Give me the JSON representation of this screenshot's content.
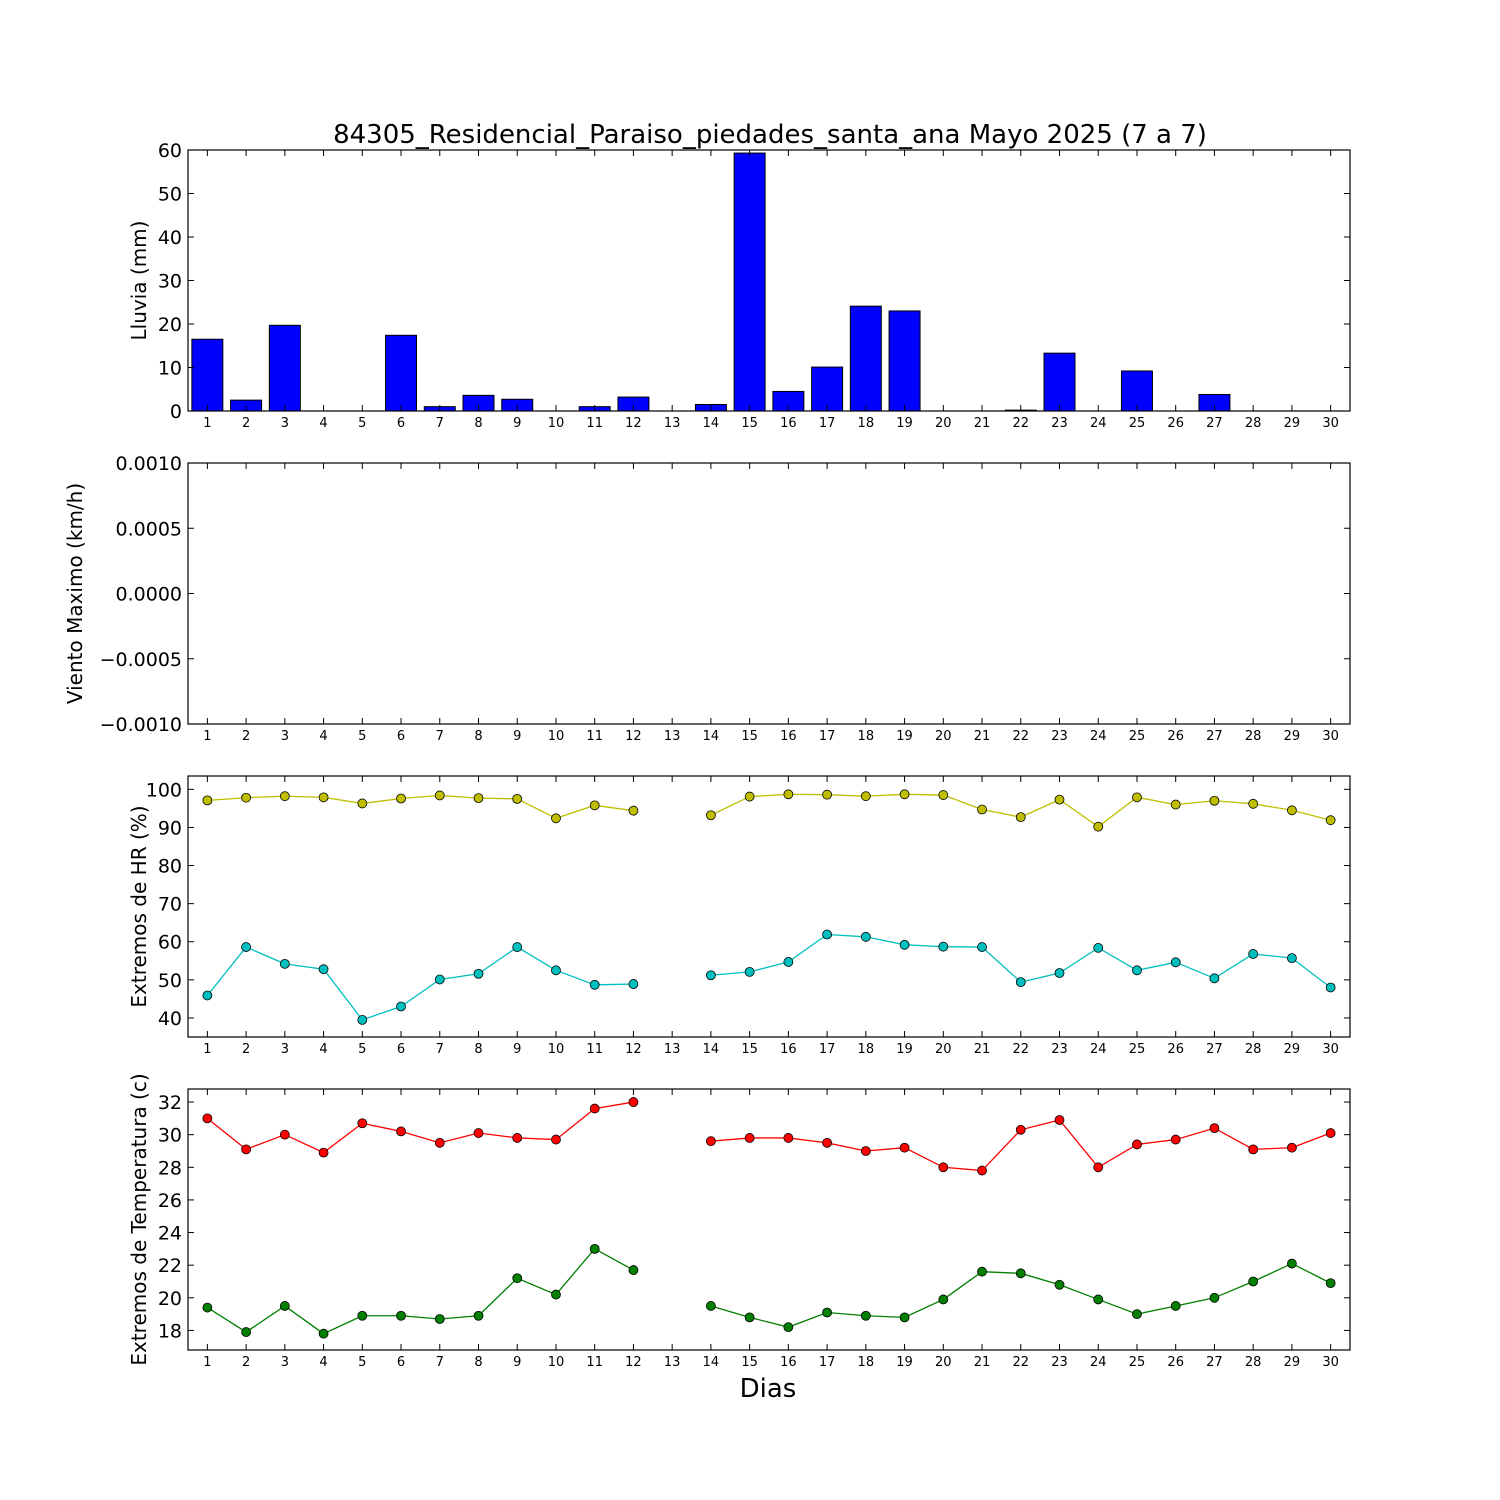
{
  "figure": {
    "title": "84305_Residencial_Paraiso_piedades_santa_ana Mayo 2025  (7 a 7)",
    "xlabel": "Dias"
  },
  "chart_data": [
    {
      "type": "bar",
      "ylabel": "Lluvia (mm)",
      "ylim": [
        0,
        60
      ],
      "yticks": [
        0,
        10,
        20,
        30,
        40,
        50,
        60
      ],
      "ytick_labels": [
        "0",
        "10",
        "20",
        "30",
        "40",
        "50",
        "60"
      ],
      "x": [
        1,
        2,
        3,
        4,
        5,
        6,
        7,
        8,
        9,
        10,
        11,
        12,
        13,
        14,
        15,
        16,
        17,
        18,
        19,
        20,
        21,
        22,
        23,
        24,
        25,
        26,
        27,
        28,
        29,
        30
      ],
      "series": [
        {
          "color": "#0000ff",
          "values": [
            16.5,
            2.5,
            19.7,
            0,
            0,
            17.4,
            1.0,
            3.6,
            2.7,
            0,
            1.0,
            3.2,
            null,
            1.5,
            59.3,
            4.5,
            10.1,
            24.1,
            23.0,
            0,
            0,
            0.2,
            13.3,
            0,
            9.2,
            null,
            3.8,
            0,
            0,
            0
          ]
        }
      ]
    },
    {
      "type": "line",
      "ylabel": "Viento Maximo (km/h)",
      "ylim": [
        -0.001,
        0.001
      ],
      "yticks": [
        -0.001,
        -0.0005,
        0,
        0.0005,
        0.001
      ],
      "ytick_labels": [
        "−0.0010",
        "−0.0005",
        "0.0000",
        "0.0005",
        "0.0010"
      ],
      "x": [
        1,
        2,
        3,
        4,
        5,
        6,
        7,
        8,
        9,
        10,
        11,
        12,
        13,
        14,
        15,
        16,
        17,
        18,
        19,
        20,
        21,
        22,
        23,
        24,
        25,
        26,
        27,
        28,
        29,
        30
      ],
      "series": []
    },
    {
      "type": "line",
      "ylabel": "Extremos de HR (%)",
      "ylim": [
        35,
        103.5
      ],
      "yticks": [
        40,
        50,
        60,
        70,
        80,
        90,
        100
      ],
      "ytick_labels": [
        "40",
        "50",
        "60",
        "70",
        "80",
        "90",
        "100"
      ],
      "x": [
        1,
        2,
        3,
        4,
        5,
        6,
        7,
        8,
        9,
        10,
        11,
        12,
        13,
        14,
        15,
        16,
        17,
        18,
        19,
        20,
        21,
        22,
        23,
        24,
        25,
        26,
        27,
        28,
        29,
        30
      ],
      "series": [
        {
          "color": "#bfbf00",
          "values": [
            97.1,
            97.8,
            98.2,
            97.9,
            96.3,
            97.6,
            98.4,
            97.7,
            97.5,
            92.4,
            95.8,
            94.4,
            null,
            93.2,
            98.1,
            98.7,
            98.6,
            98.2,
            98.7,
            98.5,
            94.7,
            92.7,
            97.3,
            90.2,
            97.9,
            96.0,
            97.0,
            96.2,
            94.5,
            91.9
          ]
        },
        {
          "color": "#00bfbf",
          "values": [
            45.9,
            58.6,
            54.2,
            52.8,
            39.5,
            43.0,
            50.1,
            51.6,
            58.6,
            52.5,
            48.7,
            48.9,
            null,
            51.2,
            52.1,
            54.7,
            61.9,
            61.3,
            59.2,
            58.7,
            58.6,
            49.4,
            51.8,
            58.4,
            52.5,
            54.6,
            50.4,
            56.8,
            55.7,
            48.0
          ]
        }
      ]
    },
    {
      "type": "line",
      "ylabel": "Extremos de Temperatura (c)",
      "ylim": [
        16.8,
        32.8
      ],
      "yticks": [
        18,
        20,
        22,
        24,
        26,
        28,
        30,
        32
      ],
      "ytick_labels": [
        "18",
        "20",
        "22",
        "24",
        "26",
        "28",
        "30",
        "32"
      ],
      "x": [
        1,
        2,
        3,
        4,
        5,
        6,
        7,
        8,
        9,
        10,
        11,
        12,
        13,
        14,
        15,
        16,
        17,
        18,
        19,
        20,
        21,
        22,
        23,
        24,
        25,
        26,
        27,
        28,
        29,
        30
      ],
      "series": [
        {
          "color": "#ff0000",
          "values": [
            31.0,
            29.1,
            30.0,
            28.9,
            30.7,
            30.2,
            29.5,
            30.1,
            29.8,
            29.7,
            31.6,
            32.0,
            null,
            29.6,
            29.8,
            29.8,
            29.5,
            29.0,
            29.2,
            28.0,
            27.8,
            30.3,
            30.9,
            28.0,
            29.4,
            29.7,
            30.4,
            29.1,
            29.2,
            30.1
          ]
        },
        {
          "color": "#007f00",
          "values": [
            19.4,
            17.9,
            19.5,
            17.8,
            18.9,
            18.9,
            18.7,
            18.9,
            21.2,
            20.2,
            23.0,
            21.7,
            null,
            19.5,
            18.8,
            18.2,
            19.1,
            18.9,
            18.8,
            19.9,
            21.6,
            21.5,
            20.8,
            19.9,
            19.0,
            19.5,
            20.0,
            21.0,
            22.1,
            20.9
          ]
        }
      ]
    }
  ]
}
